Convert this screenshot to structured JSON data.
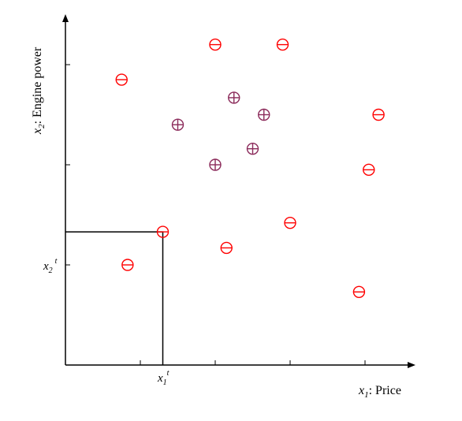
{
  "chart_data": {
    "type": "scatter",
    "xlabel": {
      "var": "x",
      "sub": "1",
      "suffix": ": Price"
    },
    "ylabel": {
      "var": "x",
      "sub": "2",
      "suffix": ": Engine power"
    },
    "threshold_labels": {
      "x": {
        "var": "x",
        "sub": "1",
        "sup": "t"
      },
      "y": {
        "var": "x",
        "sub": "2",
        "sup": "t"
      }
    },
    "xlim": [
      0,
      5
    ],
    "ylim": [
      0,
      4
    ],
    "threshold": {
      "x": 1.3,
      "y": 1.33
    },
    "series": [
      {
        "marker": "minus-circle",
        "color": "#ff0000",
        "points": [
          {
            "x": 0.75,
            "y": 2.85
          },
          {
            "x": 2.0,
            "y": 3.2
          },
          {
            "x": 2.9,
            "y": 3.2
          },
          {
            "x": 4.18,
            "y": 2.5
          },
          {
            "x": 4.05,
            "y": 1.95
          },
          {
            "x": 3.0,
            "y": 1.42
          },
          {
            "x": 2.15,
            "y": 1.17
          },
          {
            "x": 1.3,
            "y": 1.33
          },
          {
            "x": 0.83,
            "y": 1.0
          },
          {
            "x": 3.92,
            "y": 0.73
          }
        ]
      },
      {
        "marker": "plus-circle",
        "color": "#8b2a5a",
        "points": [
          {
            "x": 2.25,
            "y": 2.67
          },
          {
            "x": 2.65,
            "y": 2.5
          },
          {
            "x": 1.5,
            "y": 2.4
          },
          {
            "x": 2.5,
            "y": 2.16
          },
          {
            "x": 2.0,
            "y": 2.0
          }
        ]
      }
    ]
  }
}
